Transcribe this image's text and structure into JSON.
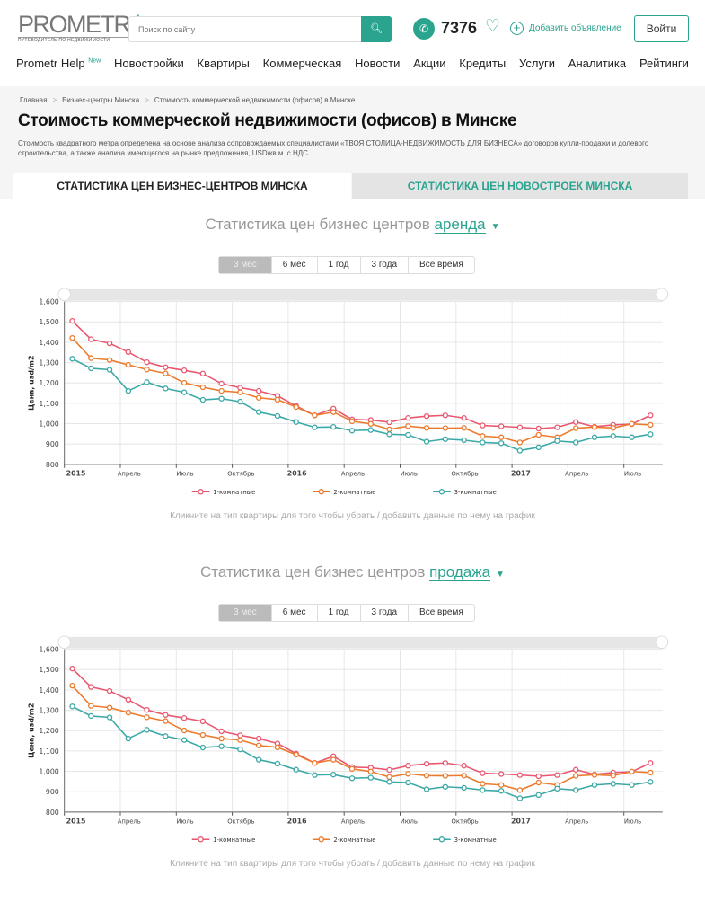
{
  "header": {
    "logo_main": "PROMETR",
    "logo_suffix": ".by",
    "logo_tagline": "ПУТЕВОДИТЕЛЬ ПО НЕДВИЖИМОСТИ",
    "search_placeholder": "Поиск по сайту",
    "count": "7376",
    "add_label": "Добавить объявление",
    "login_label": "Войти"
  },
  "nav": [
    {
      "label": "Prometr Help",
      "badge": "New"
    },
    {
      "label": "Новостройки"
    },
    {
      "label": "Квартиры"
    },
    {
      "label": "Коммерческая"
    },
    {
      "label": "Новости"
    },
    {
      "label": "Акции"
    },
    {
      "label": "Кредиты"
    },
    {
      "label": "Услуги"
    },
    {
      "label": "Аналитика"
    },
    {
      "label": "Рейтинги"
    }
  ],
  "breadcrumb": [
    "Главная",
    "Бизнес-центры Минска",
    "Стоимость коммерческой недвижимости (офисов) в Минске"
  ],
  "page": {
    "title": "Стоимость коммерческой недвижимости (офисов) в Минске",
    "description": "Стоимость квадратного метра определена на основе анализа сопровождаемых специалистами «ТВОЯ СТОЛИЦА-НЕДВИЖИМОСТЬ ДЛЯ БИЗНЕСА» договоров купли-продажи и долевого строительства, а также анализа имеющегося на рынке предложения, USD/кв.м. с НДС."
  },
  "tabs": [
    "СТАТИСТИКА ЦЕН БИЗНЕС-ЦЕНТРОВ МИНСКА",
    "СТАТИСТИКА ЦЕН НОВОСТРОЕК МИНСКА"
  ],
  "sections": [
    {
      "title": "Статистика цен бизнес центров",
      "selected": "аренда",
      "ranges": [
        "3 мес",
        "6 мес",
        "1 год",
        "3 года",
        "Все время"
      ],
      "hint": "Кликните на тип квартиры для того чтобы убрать / добавить данные по нему на график"
    },
    {
      "title": "Статистика цен бизнес центров",
      "selected": "продажа",
      "ranges": [
        "3 мес",
        "6 мес",
        "1 год",
        "3 года",
        "Все время"
      ],
      "hint": "Кликните на тип квартиры для того чтобы убрать / добавить данные по нему на график"
    }
  ],
  "chart_data": [
    {
      "type": "line",
      "ylabel": "Цена, usd/m2",
      "ylim": [
        800,
        1600
      ],
      "yticks": [
        "800",
        "900",
        "1,000",
        "1,100",
        "1,200",
        "1,300",
        "1,400",
        "1,500",
        "1,600"
      ],
      "x_start": "2015-01",
      "x_months": 32,
      "xticks": [
        {
          "m": 0,
          "label": "2015",
          "bold": true
        },
        {
          "m": 3,
          "label": "Апрель"
        },
        {
          "m": 6,
          "label": "Июль"
        },
        {
          "m": 9,
          "label": "Октябрь"
        },
        {
          "m": 12,
          "label": "2016",
          "bold": true
        },
        {
          "m": 15,
          "label": "Апрель"
        },
        {
          "m": 18,
          "label": "Июль"
        },
        {
          "m": 21,
          "label": "Октябрь"
        },
        {
          "m": 24,
          "label": "2017",
          "bold": true
        },
        {
          "m": 27,
          "label": "Апрель"
        },
        {
          "m": 30,
          "label": "Июль"
        }
      ],
      "legend_position": "bottom",
      "series": [
        {
          "name": "1-комнатные",
          "color": "#e8576f",
          "values": [
            1505,
            1415,
            1395,
            1352,
            1302,
            1277,
            1262,
            1246,
            1197,
            1177,
            1161,
            1137,
            1087,
            1041,
            1074,
            1021,
            1018,
            1007,
            1028,
            1037,
            1041,
            1028,
            991,
            987,
            982,
            976,
            982,
            1008,
            985,
            994,
            998,
            1041
          ]
        },
        {
          "name": "2-комнатные",
          "color": "#ec7a2c",
          "values": [
            1421,
            1322,
            1313,
            1289,
            1266,
            1247,
            1201,
            1179,
            1161,
            1154,
            1127,
            1118,
            1082,
            1041,
            1057,
            1012,
            999,
            972,
            988,
            979,
            978,
            979,
            939,
            933,
            908,
            945,
            933,
            978,
            983,
            979,
            999,
            994
          ]
        },
        {
          "name": "3-комнатные",
          "color": "#3aa8a6",
          "values": [
            1319,
            1272,
            1265,
            1161,
            1204,
            1173,
            1154,
            1117,
            1123,
            1108,
            1057,
            1038,
            1008,
            982,
            984,
            966,
            969,
            948,
            945,
            912,
            924,
            919,
            908,
            904,
            868,
            884,
            915,
            908,
            933,
            939,
            933,
            948
          ]
        }
      ]
    },
    {
      "type": "line",
      "ylabel": "Цена, usd/m2",
      "ylim": [
        800,
        1600
      ],
      "yticks": [
        "800",
        "900",
        "1,000",
        "1,100",
        "1,200",
        "1,300",
        "1,400",
        "1,500",
        "1,600"
      ],
      "x_start": "2015-01",
      "x_months": 32,
      "xticks": [
        {
          "m": 0,
          "label": "2015",
          "bold": true
        },
        {
          "m": 3,
          "label": "Апрель"
        },
        {
          "m": 6,
          "label": "Июль"
        },
        {
          "m": 9,
          "label": "Октябрь"
        },
        {
          "m": 12,
          "label": "2016",
          "bold": true
        },
        {
          "m": 15,
          "label": "Апрель"
        },
        {
          "m": 18,
          "label": "Июль"
        },
        {
          "m": 21,
          "label": "Октябрь"
        },
        {
          "m": 24,
          "label": "2017",
          "bold": true
        },
        {
          "m": 27,
          "label": "Апрель"
        },
        {
          "m": 30,
          "label": "Июль"
        }
      ],
      "legend_position": "bottom",
      "series": [
        {
          "name": "1-комнатные",
          "color": "#e8576f",
          "values": [
            1505,
            1415,
            1395,
            1352,
            1302,
            1277,
            1262,
            1246,
            1197,
            1177,
            1161,
            1137,
            1087,
            1041,
            1074,
            1021,
            1018,
            1007,
            1028,
            1037,
            1041,
            1028,
            991,
            987,
            982,
            976,
            982,
            1008,
            985,
            994,
            998,
            1041
          ]
        },
        {
          "name": "2-комнатные",
          "color": "#ec7a2c",
          "values": [
            1421,
            1322,
            1313,
            1289,
            1266,
            1247,
            1201,
            1179,
            1161,
            1154,
            1127,
            1118,
            1082,
            1041,
            1057,
            1012,
            999,
            972,
            988,
            979,
            978,
            979,
            939,
            933,
            908,
            945,
            933,
            978,
            983,
            979,
            999,
            994
          ]
        },
        {
          "name": "3-комнатные",
          "color": "#3aa8a6",
          "values": [
            1319,
            1272,
            1265,
            1161,
            1204,
            1173,
            1154,
            1117,
            1123,
            1108,
            1057,
            1038,
            1008,
            982,
            984,
            966,
            969,
            948,
            945,
            912,
            924,
            919,
            908,
            904,
            868,
            884,
            915,
            908,
            933,
            939,
            933,
            948
          ]
        }
      ]
    }
  ]
}
